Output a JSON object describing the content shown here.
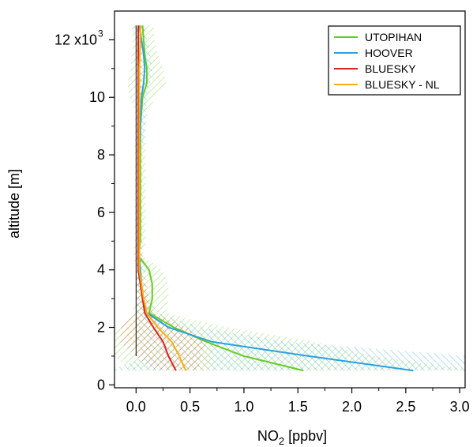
{
  "chart_data": {
    "type": "line",
    "xlabel_main": "NO",
    "xlabel_sub": "2",
    "xlabel_unit": " [ppbv]",
    "ylabel": "altitude [m]",
    "xlim": [
      -0.2,
      3.05
    ],
    "ylim": [
      -100,
      13000
    ],
    "x_ticks": [
      0.0,
      0.5,
      1.0,
      1.5,
      2.0,
      2.5,
      3.0
    ],
    "x_tick_labels": [
      "0.0",
      "0.5",
      "1.0",
      "1.5",
      "2.0",
      "2.5",
      "3.0"
    ],
    "y_ticks": [
      0,
      2000,
      4000,
      6000,
      8000,
      10000,
      12000
    ],
    "y_tick_labels": [
      "0",
      "2",
      "4",
      "6",
      "8",
      "10",
      "12 x10"
    ],
    "y_top_exponent": "3",
    "legend_position": "top-right",
    "zero_line": {
      "x": 0,
      "y_range": [
        1000,
        12500
      ]
    },
    "series": [
      {
        "name": "UTOPIHAN",
        "color": "#66cc22",
        "points": [
          [
            0.06,
            12500
          ],
          [
            0.07,
            12000
          ],
          [
            0.08,
            11500
          ],
          [
            0.1,
            11000
          ],
          [
            0.1,
            10500
          ],
          [
            0.06,
            10000
          ],
          [
            0.05,
            9500
          ],
          [
            0.04,
            9000
          ],
          [
            0.04,
            8000
          ],
          [
            0.04,
            7000
          ],
          [
            0.04,
            6000
          ],
          [
            0.04,
            5000
          ],
          [
            0.02,
            4500
          ],
          [
            0.12,
            4000
          ],
          [
            0.15,
            3500
          ],
          [
            0.15,
            3000
          ],
          [
            0.12,
            2500
          ],
          [
            0.35,
            2000
          ],
          [
            0.65,
            1500
          ],
          [
            1.0,
            1000
          ],
          [
            1.55,
            500
          ]
        ],
        "band": [
          [
            0.06,
            12500,
            0.1
          ],
          [
            0.07,
            12000,
            0.1
          ],
          [
            0.08,
            11500,
            0.12
          ],
          [
            0.1,
            11000,
            0.15
          ],
          [
            0.1,
            10500,
            0.18
          ],
          [
            0.06,
            10000,
            0.12
          ],
          [
            0.05,
            9500,
            0.06
          ],
          [
            0.04,
            9000,
            0.05
          ],
          [
            0.04,
            8000,
            0.05
          ],
          [
            0.04,
            7000,
            0.05
          ],
          [
            0.04,
            6000,
            0.05
          ],
          [
            0.04,
            5000,
            0.05
          ],
          [
            0.02,
            4500,
            0.04
          ],
          [
            0.12,
            4000,
            0.12
          ],
          [
            0.15,
            3500,
            0.15
          ],
          [
            0.15,
            3000,
            0.15
          ],
          [
            0.12,
            2500,
            0.15
          ],
          [
            0.35,
            2000,
            0.5
          ],
          [
            0.65,
            1500,
            1.0
          ],
          [
            1.0,
            1000,
            1.2
          ],
          [
            1.55,
            500,
            1.6
          ]
        ]
      },
      {
        "name": "HOOVER",
        "color": "#2aa1e0",
        "points": [
          [
            0.03,
            12500
          ],
          [
            0.05,
            12000
          ],
          [
            0.07,
            11500
          ],
          [
            0.08,
            11000
          ],
          [
            0.07,
            10500
          ],
          [
            0.05,
            10000
          ],
          [
            0.04,
            9000
          ],
          [
            0.03,
            8000
          ],
          [
            0.03,
            7000
          ],
          [
            0.03,
            6000
          ],
          [
            0.03,
            5000
          ],
          [
            0.03,
            4500
          ],
          [
            0.04,
            4000
          ],
          [
            0.05,
            3500
          ],
          [
            0.06,
            3000
          ],
          [
            0.1,
            2500
          ],
          [
            0.3,
            2000
          ],
          [
            0.7,
            1500
          ],
          [
            1.6,
            1000
          ],
          [
            2.57,
            500
          ]
        ],
        "band": [
          [
            0.03,
            12500,
            0.05
          ],
          [
            0.05,
            12000,
            0.05
          ],
          [
            0.07,
            11500,
            0.06
          ],
          [
            0.08,
            11000,
            0.07
          ],
          [
            0.07,
            10500,
            0.06
          ],
          [
            0.05,
            10000,
            0.05
          ],
          [
            0.04,
            9000,
            0.04
          ],
          [
            0.03,
            8000,
            0.03
          ],
          [
            0.03,
            7000,
            0.03
          ],
          [
            0.03,
            6000,
            0.03
          ],
          [
            0.03,
            5000,
            0.03
          ],
          [
            0.03,
            4500,
            0.03
          ],
          [
            0.04,
            4000,
            0.04
          ],
          [
            0.05,
            3500,
            0.05
          ],
          [
            0.06,
            3000,
            0.06
          ],
          [
            0.1,
            2500,
            0.1
          ],
          [
            0.3,
            2000,
            0.3
          ],
          [
            0.7,
            1500,
            0.7
          ],
          [
            1.6,
            1000,
            1.5
          ],
          [
            2.57,
            500,
            2.8
          ]
        ]
      },
      {
        "name": "BLUESKY",
        "color": "#e02020",
        "points": [
          [
            0.02,
            12500
          ],
          [
            0.02,
            12000
          ],
          [
            0.02,
            11000
          ],
          [
            0.02,
            10000
          ],
          [
            0.02,
            9000
          ],
          [
            0.02,
            8000
          ],
          [
            0.02,
            7000
          ],
          [
            0.02,
            6000
          ],
          [
            0.02,
            5000
          ],
          [
            0.02,
            4000
          ],
          [
            0.04,
            3500
          ],
          [
            0.06,
            3000
          ],
          [
            0.08,
            2500
          ],
          [
            0.16,
            2000
          ],
          [
            0.25,
            1500
          ],
          [
            0.3,
            1000
          ],
          [
            0.37,
            500
          ]
        ],
        "band": [
          [
            0.02,
            12500,
            0.02
          ],
          [
            0.02,
            12000,
            0.02
          ],
          [
            0.02,
            11000,
            0.02
          ],
          [
            0.02,
            10000,
            0.02
          ],
          [
            0.02,
            9000,
            0.02
          ],
          [
            0.02,
            8000,
            0.02
          ],
          [
            0.02,
            7000,
            0.02
          ],
          [
            0.02,
            6000,
            0.02
          ],
          [
            0.02,
            5000,
            0.02
          ],
          [
            0.02,
            4000,
            0.02
          ],
          [
            0.04,
            3500,
            0.04
          ],
          [
            0.06,
            3000,
            0.06
          ],
          [
            0.08,
            2500,
            0.08
          ],
          [
            0.16,
            2000,
            0.3
          ],
          [
            0.25,
            1500,
            0.4
          ],
          [
            0.3,
            1000,
            0.3
          ],
          [
            0.37,
            500,
            0.2
          ]
        ]
      },
      {
        "name": "BLUESKY - NL",
        "color": "#f5b010",
        "points": [
          [
            0.04,
            12500
          ],
          [
            0.04,
            12000
          ],
          [
            0.03,
            11000
          ],
          [
            0.03,
            10000
          ],
          [
            0.03,
            9000
          ],
          [
            0.03,
            8000
          ],
          [
            0.03,
            7000
          ],
          [
            0.03,
            6000
          ],
          [
            0.03,
            5000
          ],
          [
            0.03,
            4000
          ],
          [
            0.05,
            3500
          ],
          [
            0.07,
            3000
          ],
          [
            0.1,
            2500
          ],
          [
            0.2,
            2000
          ],
          [
            0.33,
            1500
          ],
          [
            0.4,
            1000
          ],
          [
            0.46,
            500
          ]
        ],
        "band": [
          [
            0.04,
            12500,
            0.02
          ],
          [
            0.04,
            12000,
            0.02
          ],
          [
            0.03,
            11000,
            0.02
          ],
          [
            0.03,
            10000,
            0.02
          ],
          [
            0.03,
            9000,
            0.02
          ],
          [
            0.03,
            8000,
            0.02
          ],
          [
            0.03,
            7000,
            0.02
          ],
          [
            0.03,
            6000,
            0.02
          ],
          [
            0.03,
            5000,
            0.02
          ],
          [
            0.03,
            4000,
            0.02
          ],
          [
            0.05,
            3500,
            0.04
          ],
          [
            0.07,
            3000,
            0.06
          ],
          [
            0.1,
            2500,
            0.08
          ],
          [
            0.2,
            2000,
            0.3
          ],
          [
            0.33,
            1500,
            0.4
          ],
          [
            0.4,
            1000,
            0.3
          ],
          [
            0.46,
            500,
            0.2
          ]
        ]
      }
    ]
  }
}
